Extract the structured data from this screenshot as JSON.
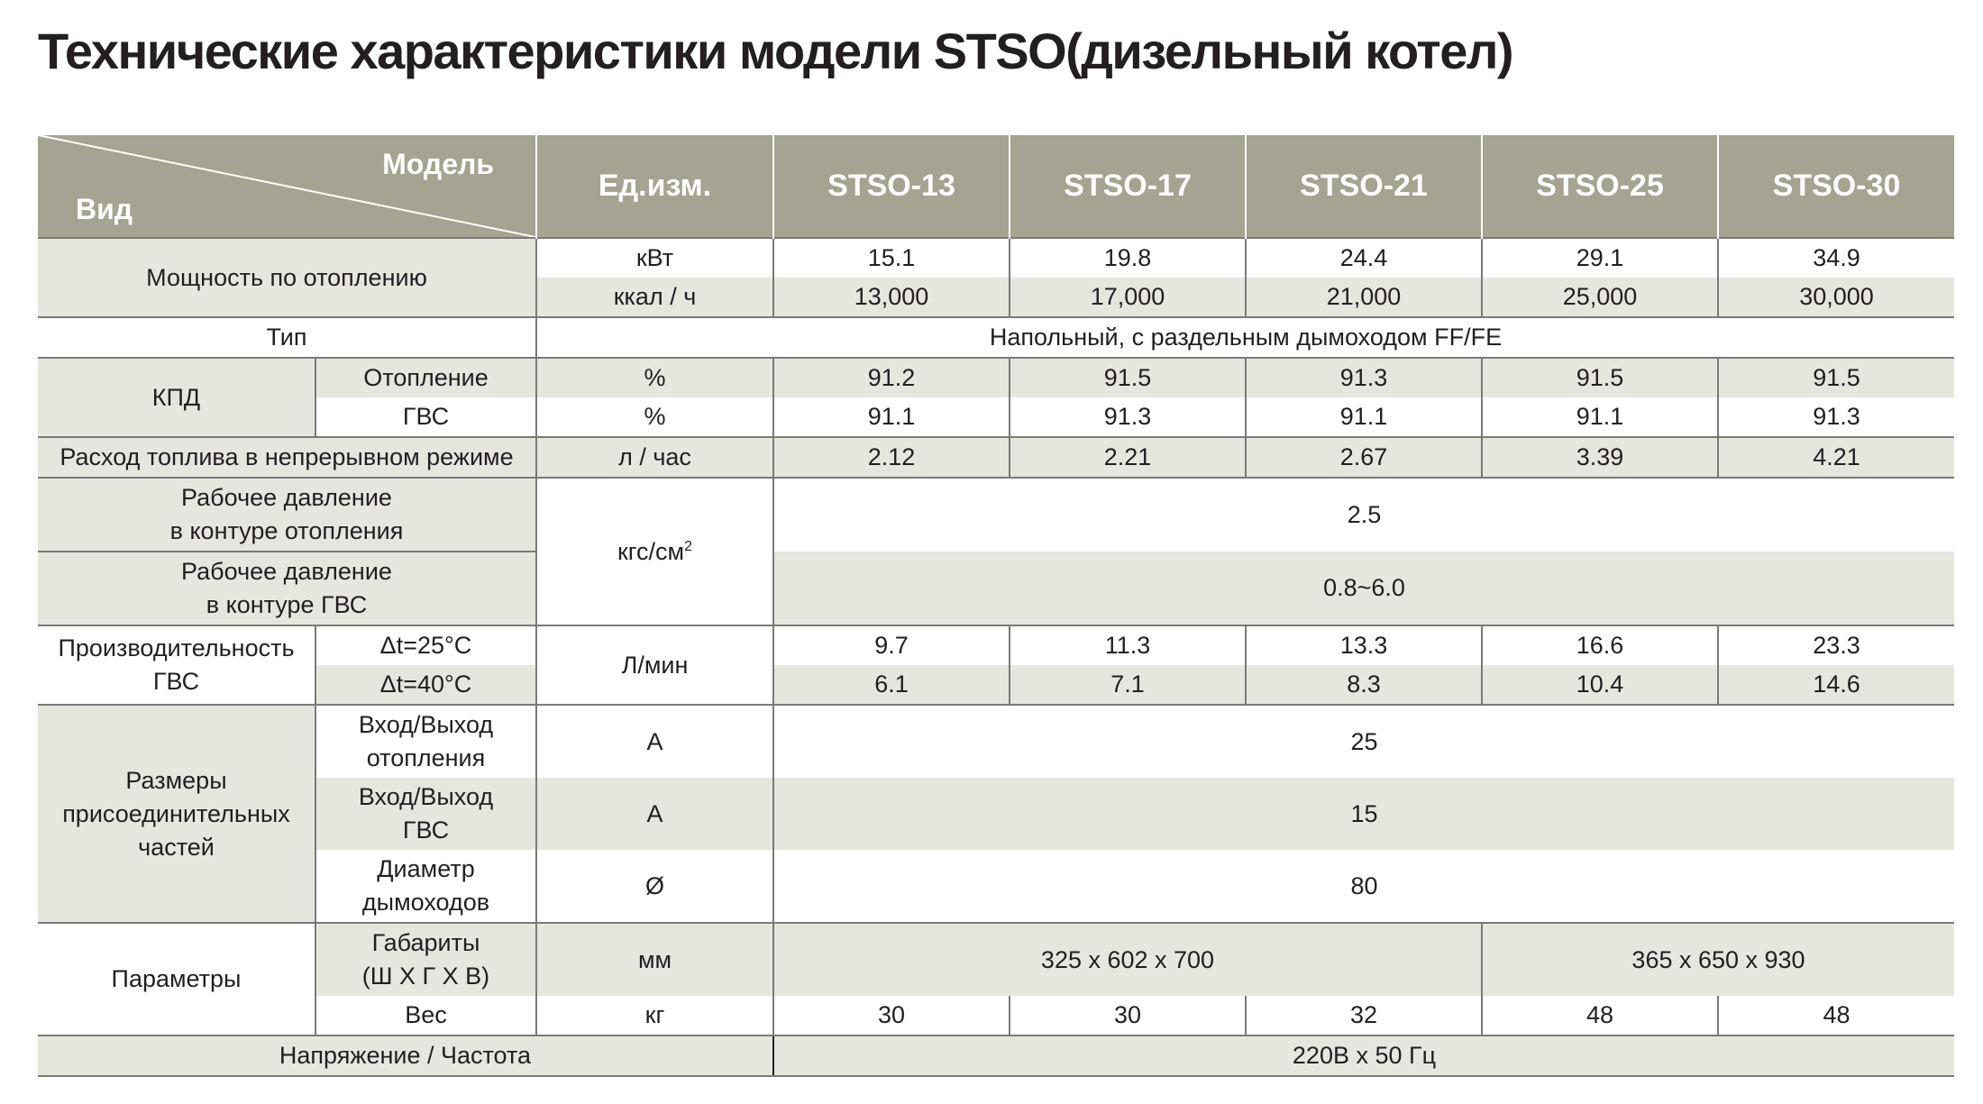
{
  "title": "Технические характеристики модели STSO(дизельный котел)",
  "header": {
    "corner_top": "Модель",
    "corner_bottom": "Вид",
    "unit_col": "Ед.изм.",
    "models": [
      "STSO-13",
      "STSO-17",
      "STSO-21",
      "STSO-25",
      "STSO-30"
    ]
  },
  "heating_power": {
    "label": "Мощность по отоплению",
    "kw": {
      "unit": "кВт",
      "values": [
        "15.1",
        "19.8",
        "24.4",
        "29.1",
        "34.9"
      ]
    },
    "kcal": {
      "unit": "ккал / ч",
      "values": [
        "13,000",
        "17,000",
        "21,000",
        "25,000",
        "30,000"
      ]
    }
  },
  "type": {
    "label": "Тип",
    "value": "Напольный, с раздельным дымоходом FF/FE"
  },
  "efficiency": {
    "label": "КПД",
    "heating": {
      "label": "Отопление",
      "unit": "%",
      "values": [
        "91.2",
        "91.5",
        "91.3",
        "91.5",
        "91.5"
      ]
    },
    "dhw": {
      "label": "ГВС",
      "unit": "%",
      "values": [
        "91.1",
        "91.3",
        "91.1",
        "91.1",
        "91.3"
      ]
    }
  },
  "fuel": {
    "label": "Расход топлива в непрерывном режиме",
    "unit": "л / час",
    "values": [
      "2.12",
      "2.21",
      "2.67",
      "3.39",
      "4.21"
    ]
  },
  "pressure": {
    "unit": "кгс/см",
    "unit_sup": "2",
    "heating_line1": "Рабочее давление",
    "heating_line2": "в контуре отопления",
    "heating_value": "2.5",
    "dhw_line1": "Рабочее давление",
    "dhw_line2": "в контуре ГВС",
    "dhw_value": "0.8~6.0"
  },
  "dhw_output": {
    "line1": "Производительность",
    "line2": "ГВС",
    "unit": "Л/мин",
    "dt25": {
      "label": "Δt=25°C",
      "values": [
        "9.7",
        "11.3",
        "13.3",
        "16.6",
        "23.3"
      ]
    },
    "dt40": {
      "label": "Δt=40°C",
      "values": [
        "6.1",
        "7.1",
        "8.3",
        "10.4",
        "14.6"
      ]
    }
  },
  "connections": {
    "line1": "Размеры",
    "line2": "присоединительных",
    "line3": "частей",
    "heating": {
      "line1": "Вход/Выход",
      "line2": "отопления",
      "unit": "A",
      "value": "25"
    },
    "dhw": {
      "line1": "Вход/Выход",
      "line2": "ГВС",
      "unit": "A",
      "value": "15"
    },
    "flue": {
      "line1": "Диаметр",
      "line2": "дымоходов",
      "unit": "Ø",
      "value": "80"
    }
  },
  "parameters": {
    "label": "Параметры",
    "dimensions": {
      "line1": "Габариты",
      "line2": "(Ш X Г X В)",
      "unit": "мм",
      "value_small": "325 x 602 x 700",
      "value_large": "365 x 650 x 930"
    },
    "weight": {
      "label": "Вес",
      "unit": "кг",
      "values": [
        "30",
        "30",
        "32",
        "48",
        "48"
      ]
    }
  },
  "power_supply": {
    "label": "Напряжение / Частота",
    "value": "220В x 50 Гц"
  },
  "colors": {
    "header_bg": "#a5a391",
    "shade_bg": "#e6e5de",
    "line": "#7a7a78",
    "text": "#231f20"
  }
}
